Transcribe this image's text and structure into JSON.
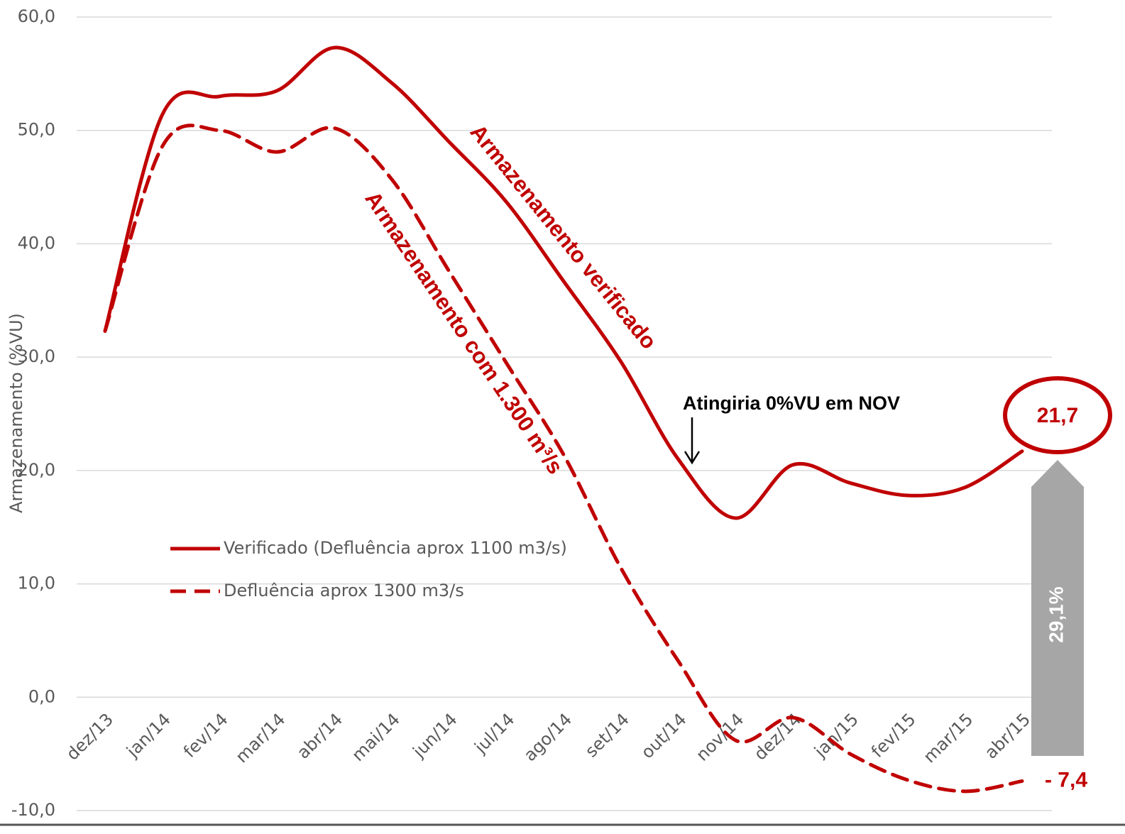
{
  "chart_data": {
    "type": "line",
    "y_axis_label": "Armazenamento (%VU)",
    "categories": [
      "dez/13",
      "jan/14",
      "fev/14",
      "mar/14",
      "abr/14",
      "mai/14",
      "jun/14",
      "jul/14",
      "ago/14",
      "set/14",
      "out/14",
      "nov/14",
      "dez/14",
      "jan/15",
      "fev/15",
      "mar/15",
      "abr/15"
    ],
    "series": [
      {
        "name": "Verificado (Defluência aprox 1100 m3/s)",
        "color": "#c00000",
        "style": "solid",
        "values": [
          32.3,
          51.4,
          53.0,
          53.5,
          57.3,
          54.2,
          49.0,
          43.7,
          36.7,
          29.6,
          21.0,
          15.8,
          20.5,
          18.9,
          17.8,
          18.5,
          21.7
        ],
        "value_labels": [
          null,
          null,
          null,
          null,
          null,
          null,
          null,
          null,
          null,
          null,
          null,
          null,
          null,
          null,
          null,
          null,
          "21,7"
        ]
      },
      {
        "name": "Defluência aprox 1300 m3/s",
        "color": "#c00000",
        "style": "dashed",
        "values": [
          32.3,
          48.6,
          50.0,
          48.1,
          50.2,
          45.7,
          37.6,
          29.5,
          21.4,
          11.4,
          3.2,
          -3.8,
          -1.8,
          -5.0,
          -7.3,
          -8.3,
          -7.4
        ],
        "value_labels": [
          null,
          null,
          null,
          null,
          null,
          null,
          null,
          null,
          null,
          null,
          null,
          null,
          null,
          null,
          null,
          null,
          "- 7,4"
        ]
      }
    ],
    "ylim": [
      -10,
      60
    ],
    "yticks": [
      {
        "value": -10,
        "label": "-10,0"
      },
      {
        "value": 0,
        "label": "0,0"
      },
      {
        "value": 10,
        "label": "10,0"
      },
      {
        "value": 20,
        "label": "20,0"
      },
      {
        "value": 30,
        "label": "30,0"
      },
      {
        "value": 40,
        "label": "40,0"
      },
      {
        "value": 50,
        "label": "50,0"
      },
      {
        "value": 60,
        "label": "60,0"
      }
    ],
    "grid": true,
    "legend": "left",
    "annotations": {
      "verified": "Armazenamento verificado",
      "alt": "Armazenamento com 1.300 m³/s",
      "arrow": "Atingiria 0%VU em NOV",
      "diff": "29,1%"
    }
  }
}
